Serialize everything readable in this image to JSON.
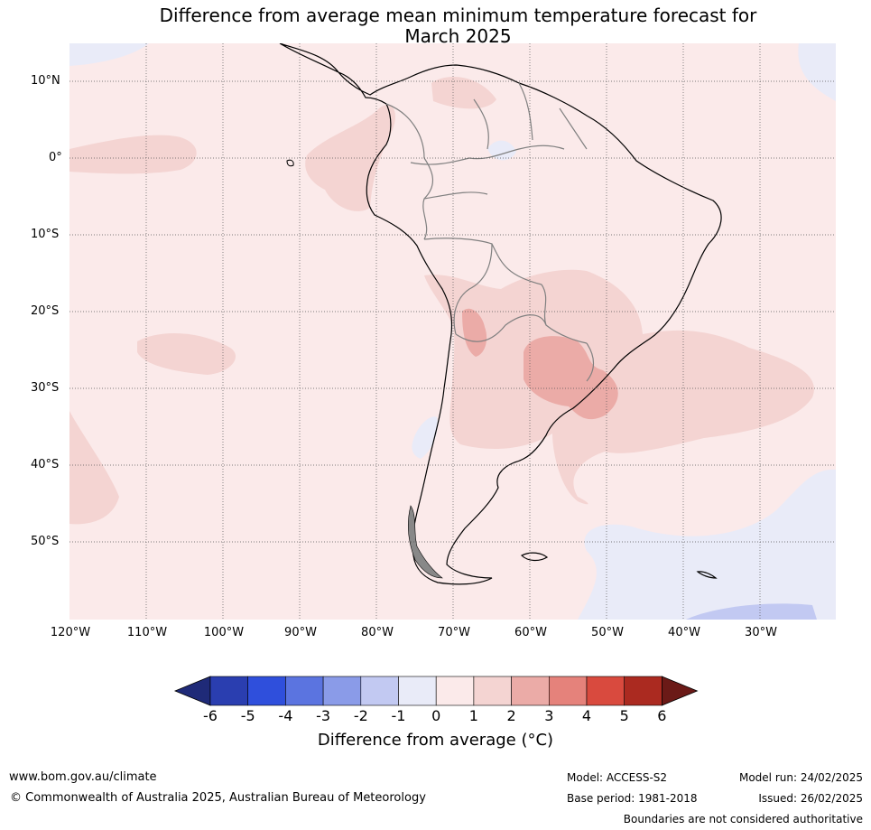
{
  "title_line1": "Difference from average mean minimum temperature forecast for",
  "title_line2": "March 2025",
  "lat_labels": [
    "10°N",
    "0°",
    "10°S",
    "20°S",
    "30°S",
    "40°S",
    "50°S"
  ],
  "lon_labels": [
    "120°W",
    "110°W",
    "100°W",
    "90°W",
    "80°W",
    "70°W",
    "60°W",
    "50°W",
    "40°W",
    "30°W"
  ],
  "colorbar": {
    "ticks": [
      "-6",
      "-5",
      "-4",
      "-3",
      "-2",
      "-1",
      "0",
      "1",
      "2",
      "3",
      "4",
      "5",
      "6"
    ],
    "colors": [
      "#1f2a78",
      "#2a3eb0",
      "#2f4fdc",
      "#5b74e0",
      "#8a9be8",
      "#c2c9f2",
      "#e9ebf8",
      "#fbeaea",
      "#f4d4d2",
      "#ebaba7",
      "#e5827b",
      "#d94a3e",
      "#ab2a20",
      "#6b1a17"
    ],
    "label": "Difference from average (°C)"
  },
  "footer": {
    "url": "www.bom.gov.au/climate",
    "copyright": "© Commonwealth of Australia 2025, Australian Bureau of Meteorology",
    "model": "Model: ACCESS-S2",
    "base_period": "Base period: 1981-2018",
    "model_run": "Model run: 24/02/2025",
    "issued": "Issued: 26/02/2025",
    "disclaimer": "Boundaries are not considered authoritative"
  }
}
